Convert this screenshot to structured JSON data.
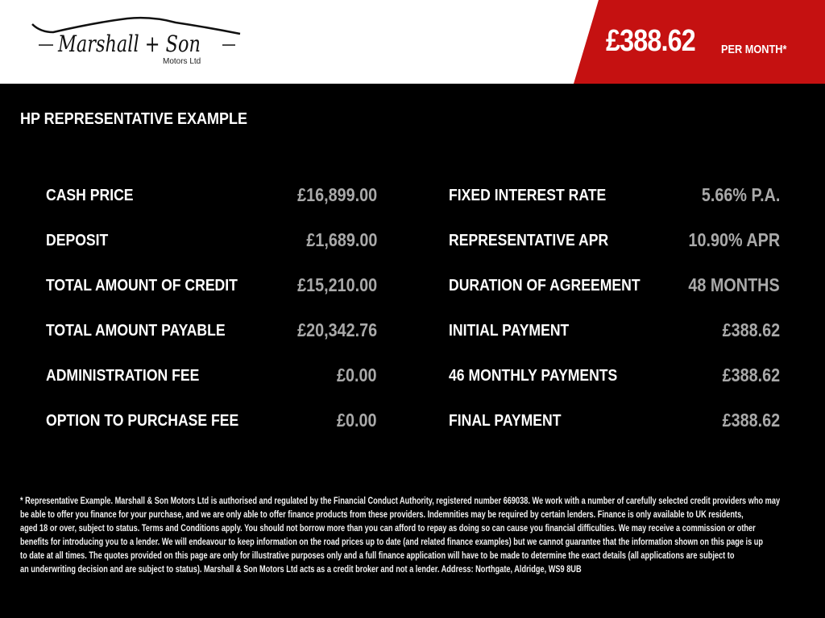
{
  "header": {
    "logo_text": "Marshall + Son",
    "logo_sub": "Motors Ltd",
    "monthly_price": "£388.62",
    "per_month": "PER MONTH*",
    "accent_color": "#c51111"
  },
  "section_title": "HP REPRESENTATIVE EXAMPLE",
  "left": [
    {
      "label": "CASH PRICE",
      "value": "£16,899.00"
    },
    {
      "label": "DEPOSIT",
      "value": "£1,689.00"
    },
    {
      "label": "TOTAL AMOUNT OF CREDIT",
      "value": "£15,210.00"
    },
    {
      "label": "TOTAL AMOUNT PAYABLE",
      "value": "£20,342.76"
    },
    {
      "label": "ADMINISTRATION FEE",
      "value": "£0.00"
    },
    {
      "label": "OPTION TO PURCHASE FEE",
      "value": "£0.00"
    }
  ],
  "right": [
    {
      "label": "FIXED INTEREST RATE",
      "value": "5.66% P.A."
    },
    {
      "label": "REPRESENTATIVE APR",
      "value": "10.90% APR"
    },
    {
      "label": "DURATION OF AGREEMENT",
      "value": "48 MONTHS"
    },
    {
      "label": "INITIAL PAYMENT",
      "value": "£388.62"
    },
    {
      "label": "46 MONTHLY PAYMENTS",
      "value": "£388.62"
    },
    {
      "label": "FINAL PAYMENT",
      "value": "£388.62"
    }
  ],
  "disclaimer": [
    "* Representative Example. Marshall & Son Motors Ltd is authorised and regulated by the Financial Conduct Authority, registered number 669038. We work with a number of carefully selected credit providers who may",
    "be able to offer you finance for your purchase, and we are only able to offer finance products from these providers. Indemnities may be required by certain lenders. Finance is only available to UK residents,",
    "aged 18 or over, subject to status. Terms and Conditions apply. You should not borrow more than you can afford to repay as doing so can cause you financial difficulties. We may receive a commission or other",
    "benefits for introducing you to a lender. We will endeavour to keep information on the road prices up to date (and related finance examples) but we cannot guarantee that the information shown on this page is up",
    "to date at all times. The quotes provided on this page are only for illustrative purposes only and a full finance application will have to be made to determine the exact details (all applications are subject to",
    "an underwriting decision and are subject to status). Marshall & Son Motors Ltd acts as a credit broker and not a lender. Address: Northgate, Aldridge, WS9 8UB"
  ]
}
